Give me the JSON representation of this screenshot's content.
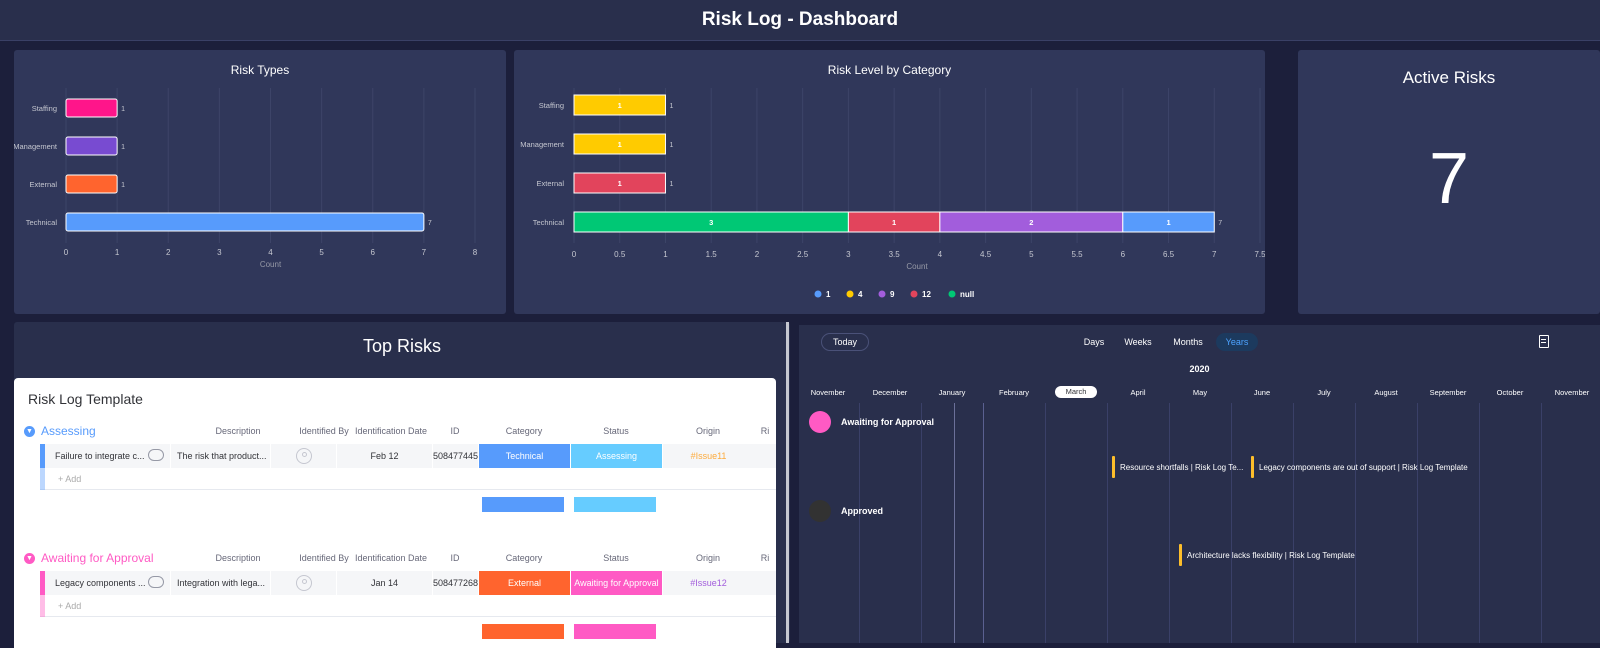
{
  "header": {
    "title": "Risk Log - Dashboard"
  },
  "risk_types": {
    "title": "Risk Types",
    "chart_data": {
      "type": "bar",
      "orientation": "horizontal",
      "title": "Risk Types",
      "xlabel": "Count",
      "categories": [
        "Staffing",
        "Management",
        "External",
        "Technical"
      ],
      "values": [
        1,
        1,
        1,
        7
      ],
      "colors": [
        "#ff158a",
        "#784bd1",
        "#ff642e",
        "#579bfc"
      ],
      "xlim": [
        0,
        8
      ],
      "xticks": [
        "0",
        "1",
        "2",
        "3",
        "4",
        "5",
        "6",
        "7",
        "8"
      ],
      "grid": true
    }
  },
  "risk_level": {
    "title": "Risk Level by Category",
    "chart_data": {
      "type": "bar",
      "orientation": "horizontal",
      "stacked": true,
      "title": "Risk Level by Category",
      "xlabel": "Count",
      "categories": [
        "Staffing",
        "Management",
        "External",
        "Technical"
      ],
      "series": [
        {
          "name": "null",
          "color": "#00c875",
          "values": [
            0,
            0,
            0,
            3
          ]
        },
        {
          "name": "12",
          "color": "#e2445c",
          "values": [
            0,
            0,
            1,
            1
          ]
        },
        {
          "name": "9",
          "color": "#a25ddc",
          "values": [
            0,
            0,
            0,
            2
          ]
        },
        {
          "name": "4",
          "color": "#ffcb00",
          "values": [
            1,
            1,
            0,
            0
          ]
        },
        {
          "name": "1",
          "color": "#579bfc",
          "values": [
            0,
            0,
            0,
            1
          ]
        }
      ],
      "totals": [
        "1",
        "1",
        "1",
        "7"
      ],
      "legend": [
        {
          "name": "1",
          "color": "#579bfc"
        },
        {
          "name": "4",
          "color": "#ffcb00"
        },
        {
          "name": "9",
          "color": "#a25ddc"
        },
        {
          "name": "12",
          "color": "#e2445c"
        },
        {
          "name": "null",
          "color": "#00c875"
        }
      ],
      "legend_position": "bottom",
      "xlim": [
        0,
        7.5
      ],
      "xticks": [
        "0",
        "0.5",
        "1",
        "1.5",
        "2",
        "2.5",
        "3",
        "3.5",
        "4",
        "4.5",
        "5",
        "5.5",
        "6",
        "6.5",
        "7",
        "7.5"
      ],
      "grid": true
    }
  },
  "active_risks": {
    "title": "Active Risks",
    "value": "7"
  },
  "top_risks": {
    "title": "Top Risks",
    "board_title": "Risk Log Template",
    "columns": [
      "Description",
      "Identified By",
      "Identification Date",
      "ID",
      "Category",
      "Status",
      "Origin",
      "Ri"
    ],
    "add_label": "+ Add",
    "groups": [
      {
        "name": "Assessing",
        "color": "#579bfc",
        "accent": "#66ccff",
        "row": {
          "item": "Failure to integrate c...",
          "description": "The risk that product...",
          "date": "Feb 12",
          "id": "508477445",
          "category": "Technical",
          "category_color": "#579bfc",
          "status": "Assessing",
          "status_color": "#66ccff",
          "origin": "#Issue11",
          "origin_color": "#fdab3d"
        },
        "summary_colors": [
          "#579bfc",
          "#66ccff"
        ]
      },
      {
        "name": "Awaiting for Approval",
        "color": "#ff5ac4",
        "accent": "#ff5ac4",
        "row": {
          "item": "Legacy components ...",
          "description": "Integration with lega...",
          "date": "Jan 14",
          "id": "508477268",
          "category": "External",
          "category_color": "#ff642e",
          "status": "Awaiting for Approval",
          "status_color": "#ff5ac4",
          "origin": "#Issue12",
          "origin_color": "#a25ddc"
        },
        "summary_colors": [
          "#ff642e",
          "#ff5ac4"
        ]
      }
    ]
  },
  "timeline": {
    "today_label": "Today",
    "tabs": [
      "Days",
      "Weeks",
      "Months",
      "Years"
    ],
    "active_tab": "Years",
    "year": "2020",
    "months": [
      "November",
      "December",
      "January",
      "February",
      "March",
      "April",
      "May",
      "June",
      "July",
      "August",
      "September",
      "October",
      "November"
    ],
    "current_month": "March",
    "lanes": [
      {
        "name": "Awaiting for Approval",
        "color": "#ff5ac4"
      },
      {
        "name": "Approved",
        "color": "#323232"
      }
    ],
    "items": [
      "Resource shortfalls | Risk Log Te...",
      "Legacy components are out of support | Risk Log Template",
      "Architecture lacks flexibility | Risk Log Template"
    ]
  }
}
